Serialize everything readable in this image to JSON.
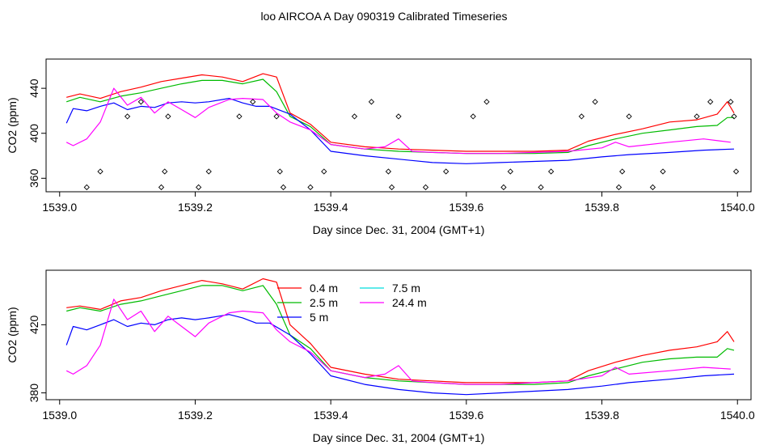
{
  "page": {
    "title": "loo AIRCOA A  Day 090319  Calibrated Timeseries"
  },
  "colors": {
    "h0_4": "#ff0000",
    "h2_5": "#00bb00",
    "h5": "#0000ff",
    "h7_5": "#00dddd",
    "h24_4": "#ff00ff",
    "markers": "#000000",
    "axes": "#000000"
  },
  "chart_data": [
    {
      "type": "line",
      "xlabel": "Day since Dec. 31, 2004 (GMT+1)",
      "ylabel": "CO2 (ppm)",
      "xlim": [
        1538.98,
        1540.02
      ],
      "ylim": [
        348,
        466
      ],
      "xticks": [
        1539.0,
        1539.2,
        1539.4,
        1539.6,
        1539.8,
        1540.0
      ],
      "xtick_labels": [
        "1539.0",
        "1539.2",
        "1539.4",
        "1539.6",
        "1539.8",
        "1540.0"
      ],
      "yticks": [
        360,
        400,
        440
      ],
      "ytick_labels": [
        "360",
        "400",
        "440"
      ],
      "legend": null,
      "series": [
        {
          "color_key": "h0_4",
          "x": [
            1539.01,
            1539.03,
            1539.06,
            1539.09,
            1539.12,
            1539.15,
            1539.18,
            1539.21,
            1539.24,
            1539.27,
            1539.3,
            1539.32,
            1539.34,
            1539.37,
            1539.4,
            1539.45,
            1539.5,
            1539.55,
            1539.6,
            1539.65,
            1539.7,
            1539.75,
            1539.78,
            1539.82,
            1539.86,
            1539.9,
            1539.94,
            1539.97,
            1539.985,
            1539.995
          ],
          "y": [
            432,
            435,
            431,
            437,
            441,
            446,
            449,
            452,
            450,
            446,
            453,
            450,
            418,
            408,
            392,
            388,
            386,
            385,
            384,
            384,
            384,
            385,
            393,
            399,
            404,
            410,
            412,
            417,
            428,
            418
          ]
        },
        {
          "color_key": "h2_5",
          "x": [
            1539.01,
            1539.03,
            1539.06,
            1539.09,
            1539.12,
            1539.15,
            1539.18,
            1539.21,
            1539.24,
            1539.27,
            1539.3,
            1539.32,
            1539.34,
            1539.37,
            1539.4,
            1539.45,
            1539.5,
            1539.55,
            1539.6,
            1539.65,
            1539.7,
            1539.75,
            1539.78,
            1539.82,
            1539.86,
            1539.9,
            1539.94,
            1539.97,
            1539.985,
            1539.995
          ],
          "y": [
            428,
            432,
            428,
            433,
            436,
            440,
            444,
            447,
            447,
            444,
            448,
            437,
            415,
            406,
            390,
            386,
            384,
            383,
            382,
            382,
            382,
            383,
            389,
            395,
            400,
            403,
            406,
            407,
            414,
            414
          ]
        },
        {
          "color_key": "h5",
          "x": [
            1539.01,
            1539.02,
            1539.04,
            1539.06,
            1539.08,
            1539.1,
            1539.12,
            1539.14,
            1539.16,
            1539.18,
            1539.2,
            1539.22,
            1539.25,
            1539.27,
            1539.29,
            1539.31,
            1539.34,
            1539.37,
            1539.4,
            1539.45,
            1539.5,
            1539.55,
            1539.6,
            1539.65,
            1539.7,
            1539.75,
            1539.8,
            1539.84,
            1539.9,
            1539.95,
            1539.995
          ],
          "y": [
            409,
            422,
            420,
            424,
            427,
            421,
            424,
            423,
            427,
            428,
            427,
            428,
            431,
            427,
            424,
            424,
            417,
            403,
            384,
            380,
            377,
            374,
            373,
            374,
            375,
            376,
            379,
            381,
            383,
            385,
            386
          ]
        },
        {
          "color_key": "h24_4",
          "x": [
            1539.01,
            1539.02,
            1539.04,
            1539.06,
            1539.08,
            1539.1,
            1539.12,
            1539.14,
            1539.16,
            1539.18,
            1539.2,
            1539.22,
            1539.25,
            1539.27,
            1539.3,
            1539.32,
            1539.34,
            1539.37,
            1539.4,
            1539.45,
            1539.48,
            1539.5,
            1539.52,
            1539.55,
            1539.6,
            1539.65,
            1539.7,
            1539.75,
            1539.8,
            1539.82,
            1539.84,
            1539.9,
            1539.95,
            1539.99
          ],
          "y": [
            392,
            389,
            395,
            410,
            440,
            425,
            432,
            418,
            428,
            421,
            414,
            423,
            430,
            431,
            430,
            418,
            410,
            403,
            390,
            386,
            388,
            395,
            384,
            383,
            382,
            382,
            383,
            384,
            387,
            392,
            388,
            392,
            395,
            392
          ]
        }
      ],
      "markers": {
        "shape": "diamond",
        "x": [
          1539.04,
          1539.06,
          1539.1,
          1539.12,
          1539.15,
          1539.155,
          1539.16,
          1539.205,
          1539.22,
          1539.265,
          1539.285,
          1539.32,
          1539.325,
          1539.33,
          1539.37,
          1539.39,
          1539.435,
          1539.46,
          1539.485,
          1539.49,
          1539.5,
          1539.54,
          1539.57,
          1539.61,
          1539.63,
          1539.655,
          1539.665,
          1539.71,
          1539.725,
          1539.77,
          1539.79,
          1539.825,
          1539.83,
          1539.84,
          1539.875,
          1539.89,
          1539.94,
          1539.96,
          1539.99,
          1539.995,
          1539.998
        ],
        "y": [
          352,
          366,
          415,
          428,
          352,
          366,
          415,
          352,
          366,
          415,
          428,
          415,
          366,
          352,
          352,
          366,
          415,
          428,
          366,
          352,
          415,
          352,
          366,
          415,
          428,
          352,
          366,
          352,
          366,
          415,
          428,
          352,
          366,
          415,
          352,
          366,
          415,
          428,
          428,
          415,
          366
        ]
      }
    },
    {
      "type": "line",
      "xlabel": "Day since Dec. 31, 2004 (GMT+1)",
      "ylabel": "CO2 (ppm)",
      "xlim": [
        1538.98,
        1540.02
      ],
      "ylim": [
        376,
        452
      ],
      "xticks": [
        1539.0,
        1539.2,
        1539.4,
        1539.6,
        1539.8,
        1540.0
      ],
      "xtick_labels": [
        "1539.0",
        "1539.2",
        "1539.4",
        "1539.6",
        "1539.8",
        "1540.0"
      ],
      "yticks": [
        380,
        420
      ],
      "ytick_labels": [
        "380",
        "420"
      ],
      "legend": {
        "placement": "top-center",
        "entries": [
          {
            "label": "0.4 m",
            "color_key": "h0_4"
          },
          {
            "label": "2.5 m",
            "color_key": "h2_5"
          },
          {
            "label": "5 m",
            "color_key": "h5"
          },
          {
            "label": "7.5 m",
            "color_key": "h7_5"
          },
          {
            "label": "24.4 m",
            "color_key": "h24_4"
          }
        ]
      },
      "series": [
        {
          "color_key": "h0_4",
          "x": [
            1539.01,
            1539.03,
            1539.06,
            1539.09,
            1539.12,
            1539.15,
            1539.18,
            1539.21,
            1539.24,
            1539.27,
            1539.3,
            1539.32,
            1539.34,
            1539.37,
            1539.4,
            1539.45,
            1539.5,
            1539.55,
            1539.6,
            1539.65,
            1539.7,
            1539.75,
            1539.78,
            1539.82,
            1539.86,
            1539.9,
            1539.94,
            1539.97,
            1539.985,
            1539.995
          ],
          "y": [
            430,
            431,
            429,
            434,
            436,
            440,
            443,
            446,
            444,
            441,
            447,
            445,
            420,
            409,
            395,
            391,
            388,
            387,
            386,
            386,
            386,
            387,
            393,
            398,
            402,
            405,
            407,
            410,
            416,
            410
          ]
        },
        {
          "color_key": "h2_5",
          "x": [
            1539.01,
            1539.03,
            1539.06,
            1539.09,
            1539.12,
            1539.15,
            1539.18,
            1539.21,
            1539.24,
            1539.27,
            1539.3,
            1539.32,
            1539.34,
            1539.37,
            1539.4,
            1539.45,
            1539.5,
            1539.55,
            1539.6,
            1539.65,
            1539.7,
            1539.75,
            1539.78,
            1539.82,
            1539.86,
            1539.9,
            1539.94,
            1539.97,
            1539.985,
            1539.995
          ],
          "y": [
            428,
            430,
            428,
            432,
            434,
            437,
            440,
            443,
            443,
            440,
            443,
            432,
            414,
            406,
            393,
            389,
            387,
            386,
            385,
            385,
            385,
            386,
            390,
            394,
            398,
            400,
            401,
            401,
            406,
            405
          ]
        },
        {
          "color_key": "h5",
          "x": [
            1539.01,
            1539.02,
            1539.04,
            1539.06,
            1539.08,
            1539.1,
            1539.12,
            1539.14,
            1539.16,
            1539.18,
            1539.2,
            1539.22,
            1539.25,
            1539.27,
            1539.29,
            1539.31,
            1539.34,
            1539.37,
            1539.4,
            1539.45,
            1539.5,
            1539.55,
            1539.6,
            1539.65,
            1539.7,
            1539.75,
            1539.8,
            1539.84,
            1539.9,
            1539.95,
            1539.995
          ],
          "y": [
            408,
            419,
            417,
            420,
            423,
            419,
            421,
            420,
            423,
            424,
            423,
            424,
            426,
            424,
            421,
            421,
            414,
            403,
            390,
            385,
            382,
            380,
            379,
            380,
            381,
            382,
            384,
            386,
            388,
            390,
            391
          ]
        },
        {
          "color_key": "h24_4",
          "x": [
            1539.01,
            1539.02,
            1539.04,
            1539.06,
            1539.08,
            1539.1,
            1539.12,
            1539.14,
            1539.16,
            1539.18,
            1539.2,
            1539.22,
            1539.25,
            1539.27,
            1539.3,
            1539.32,
            1539.34,
            1539.37,
            1539.4,
            1539.45,
            1539.48,
            1539.5,
            1539.52,
            1539.55,
            1539.6,
            1539.65,
            1539.7,
            1539.75,
            1539.8,
            1539.82,
            1539.84,
            1539.9,
            1539.95,
            1539.99
          ],
          "y": [
            393,
            391,
            396,
            408,
            435,
            423,
            428,
            416,
            425,
            419,
            413,
            421,
            427,
            428,
            427,
            417,
            410,
            404,
            393,
            389,
            391,
            396,
            387,
            386,
            385,
            385,
            386,
            387,
            390,
            395,
            391,
            393,
            395,
            394
          ]
        }
      ]
    }
  ]
}
